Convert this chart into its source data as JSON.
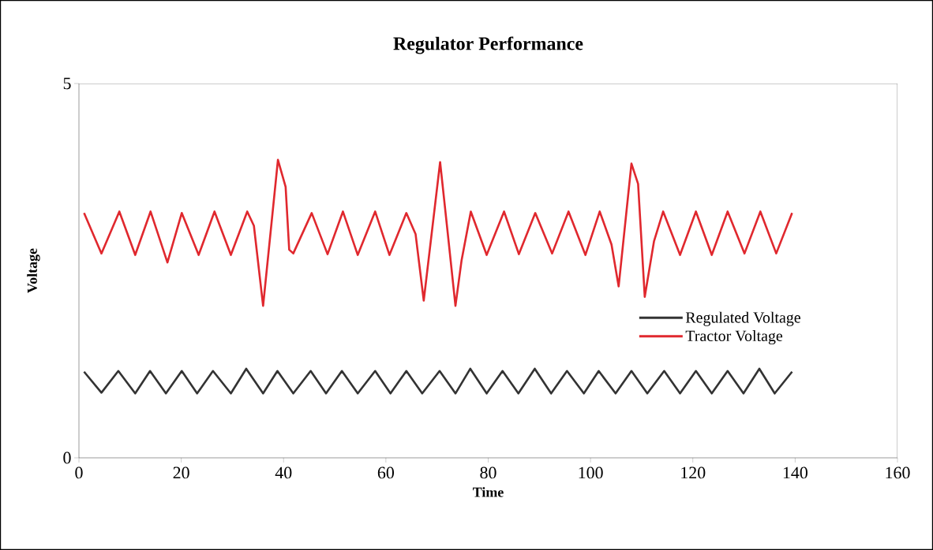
{
  "chart_data": {
    "type": "line",
    "title": "Regulator Performance",
    "xlabel": "Time",
    "ylabel": "Voltage",
    "xlim": [
      0,
      160
    ],
    "xticks": [
      0,
      20,
      40,
      60,
      80,
      100,
      120,
      140,
      160
    ],
    "ylim": [
      0,
      5
    ],
    "yticks": [
      0,
      5
    ],
    "legend": "right",
    "grid": false,
    "marker": "none",
    "line_style": "solid",
    "series": [
      {
        "name": "Regulated Voltage",
        "color": "#333333",
        "x": [
          1.0,
          4.4,
          7.7,
          11.0,
          13.9,
          17.0,
          20.1,
          23.1,
          26.2,
          29.7,
          32.7,
          36.0,
          38.8,
          41.9,
          45.3,
          48.3,
          51.4,
          54.5,
          57.9,
          60.9,
          64.0,
          67.1,
          70.5,
          73.6,
          76.5,
          79.7,
          82.8,
          85.9,
          89.1,
          92.3,
          95.4,
          98.7,
          101.6,
          104.9,
          108.0,
          111.1,
          114.4,
          117.5,
          120.6,
          123.7,
          126.8,
          129.9,
          133.0,
          136.0,
          139.4
        ],
        "values": [
          1.15,
          0.87,
          1.16,
          0.86,
          1.16,
          0.86,
          1.16,
          0.86,
          1.16,
          0.86,
          1.19,
          0.86,
          1.16,
          0.86,
          1.16,
          0.86,
          1.16,
          0.86,
          1.16,
          0.86,
          1.16,
          0.86,
          1.16,
          0.86,
          1.19,
          0.86,
          1.16,
          0.86,
          1.19,
          0.86,
          1.16,
          0.86,
          1.16,
          0.86,
          1.16,
          0.86,
          1.16,
          0.86,
          1.16,
          0.86,
          1.16,
          0.86,
          1.19,
          0.86,
          1.15
        ]
      },
      {
        "name": "Tractor Voltage",
        "color": "#e0282e",
        "x": [
          1.0,
          4.4,
          7.9,
          11.0,
          14.0,
          17.3,
          20.1,
          23.4,
          26.5,
          29.7,
          32.9,
          34.2,
          36.0,
          38.9,
          40.4,
          41.1,
          41.9,
          45.5,
          48.6,
          51.6,
          54.5,
          57.9,
          60.7,
          64.0,
          65.8,
          67.4,
          70.6,
          72.0,
          73.6,
          74.8,
          76.6,
          79.7,
          83.1,
          86.0,
          89.2,
          92.5,
          95.7,
          99.0,
          101.8,
          104.1,
          105.5,
          108.0,
          109.3,
          110.6,
          112.4,
          114.2,
          117.5,
          120.6,
          123.7,
          126.8,
          130.1,
          133.2,
          136.3,
          139.4
        ],
        "values": [
          3.27,
          2.73,
          3.29,
          2.71,
          3.29,
          2.61,
          3.27,
          2.71,
          3.29,
          2.71,
          3.29,
          3.1,
          2.03,
          3.98,
          3.62,
          2.78,
          2.73,
          3.27,
          2.72,
          3.29,
          2.71,
          3.29,
          2.71,
          3.27,
          2.99,
          2.1,
          3.95,
          3.06,
          2.03,
          2.64,
          3.29,
          2.71,
          3.29,
          2.72,
          3.27,
          2.73,
          3.29,
          2.71,
          3.29,
          2.85,
          2.29,
          3.93,
          3.66,
          2.15,
          2.89,
          3.29,
          2.71,
          3.29,
          2.71,
          3.29,
          2.73,
          3.29,
          2.73,
          3.27
        ]
      }
    ]
  }
}
